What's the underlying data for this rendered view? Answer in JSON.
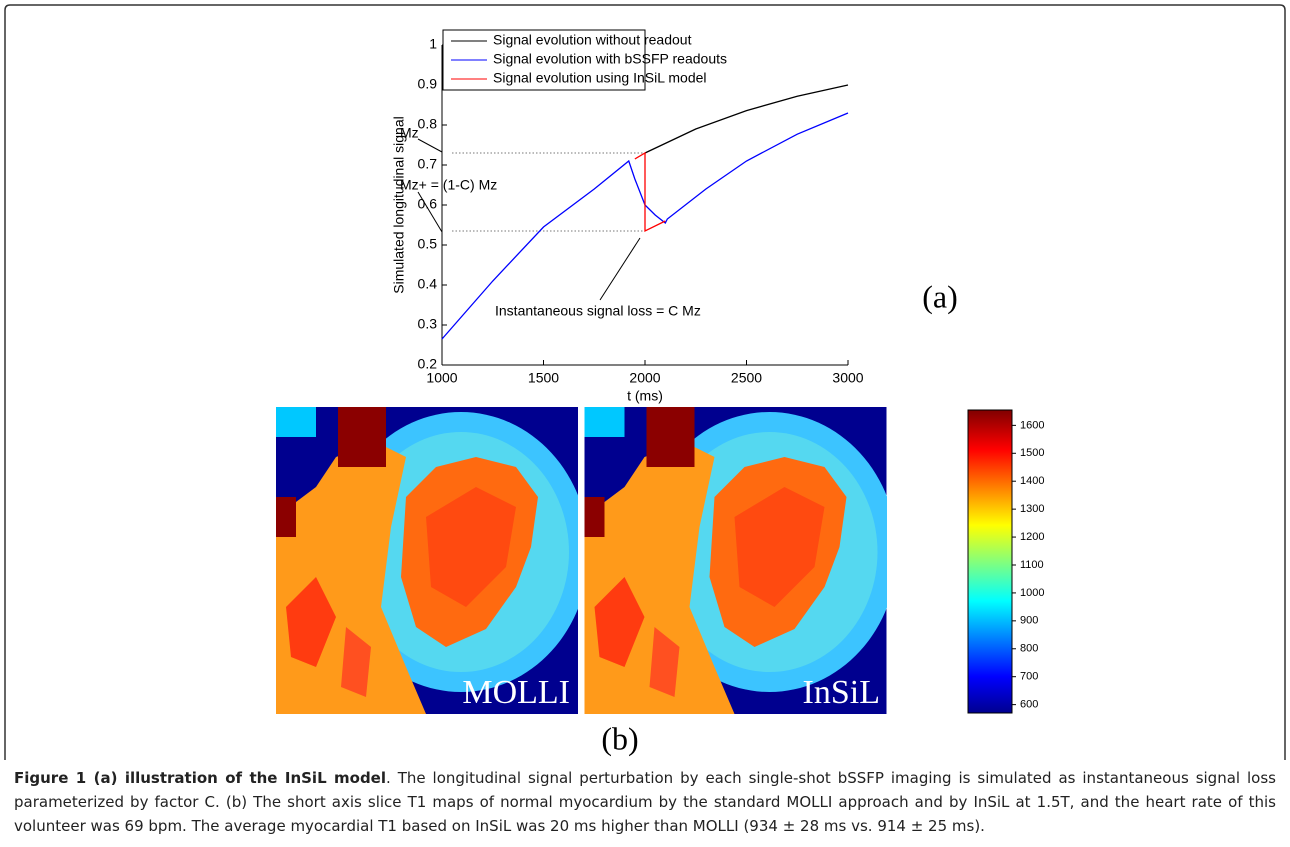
{
  "chart_data": {
    "type": "line",
    "x_label": "t (ms)",
    "y_label": "Simulated longitudinal signal",
    "xlim": [
      1000,
      3000
    ],
    "xticks": [
      1000,
      1500,
      2000,
      2500,
      3000
    ],
    "ylim": [
      0.2,
      1
    ],
    "yticks": [
      0.2,
      0.3,
      0.4,
      0.5,
      0.6,
      0.7,
      0.8,
      0.9,
      1
    ],
    "legend": "top-left",
    "series": [
      {
        "name": "Signal evolution without readout",
        "color": "#000000",
        "x": [
          2000,
          2250,
          2500,
          2750,
          3000
        ],
        "values": [
          0.73,
          0.79,
          0.836,
          0.872,
          0.9
        ]
      },
      {
        "name": "Signal evolution with bSSFP readouts",
        "color": "#0000ff",
        "x": [
          1000,
          1250,
          1500,
          1750,
          1920,
          1950,
          2000,
          2050,
          2100,
          2110,
          2300,
          2500,
          2750,
          3000
        ],
        "values": [
          0.265,
          0.41,
          0.545,
          0.64,
          0.71,
          0.665,
          0.6,
          0.575,
          0.555,
          0.565,
          0.64,
          0.71,
          0.777,
          0.83
        ]
      },
      {
        "name": "Signal evolution using InSiL model",
        "color": "#ff0000",
        "x": [
          1950,
          2000,
          2000,
          2100
        ],
        "values": [
          0.715,
          0.73,
          0.535,
          0.56
        ]
      }
    ],
    "guides": [
      {
        "y": 0.73,
        "x_end": 2000
      },
      {
        "y": 0.535,
        "x_end": 1990
      }
    ],
    "annotations": [
      "Mz",
      "Mz+ = (1-C) Mz",
      "Instantaneous signal loss =  C Mz"
    ]
  },
  "panel_labels": [
    "(a)",
    "(b)"
  ],
  "maps": [
    "MOLLI",
    "InSiL"
  ],
  "colorbar": {
    "lim": [
      570,
      1655
    ],
    "ticks": [
      600,
      700,
      800,
      900,
      1000,
      1100,
      1200,
      1300,
      1400,
      1500,
      1600
    ]
  },
  "caption": {
    "title": "Figure 1 (a) illustration of the InSiL model",
    "text": ". The longitudinal signal perturbation by each single-shot bSSFP imaging is simulated as instantaneous signal loss parameterized by factor C. (b) The short axis slice T1 maps of normal myocardium by the standard MOLLI approach and by InSiL at 1.5T, and the heart rate of this volunteer was 69 bpm. The average myocardial T1 based on InSiL was 20 ms higher than MOLLI (934 ± 28 ms vs. 914 ± 25 ms)."
  }
}
